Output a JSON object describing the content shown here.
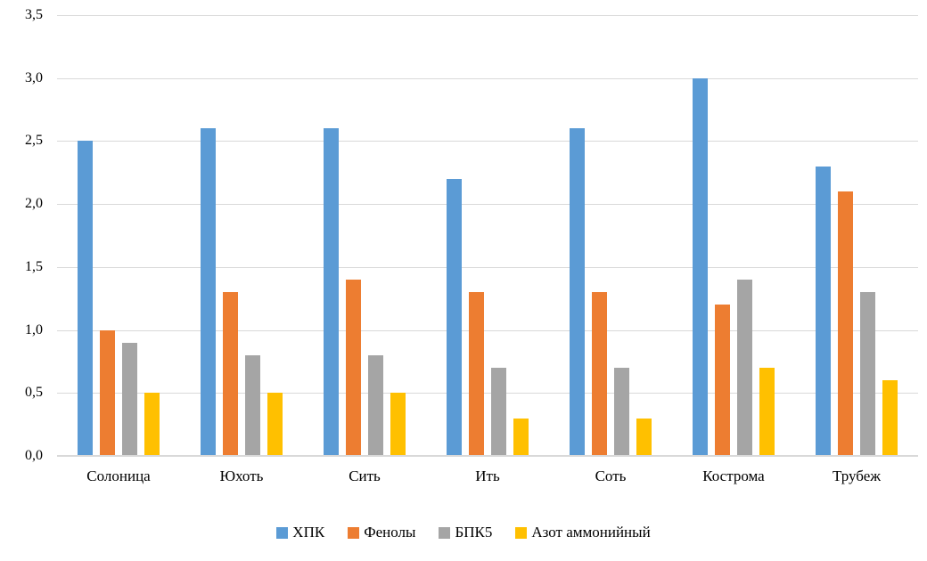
{
  "chart_data": {
    "type": "bar",
    "title": "",
    "categories": [
      "Солоница",
      "Юхоть",
      "Сить",
      "Ить",
      "Соть",
      "Кострома",
      "Трубеж"
    ],
    "series": [
      {
        "id": "khpk",
        "name": "ХПК",
        "color": "#5B9BD5",
        "values": [
          2.5,
          2.6,
          2.6,
          2.2,
          2.6,
          3.0,
          2.3
        ]
      },
      {
        "id": "fenoly",
        "name": "Фенолы",
        "color": "#ED7D31",
        "values": [
          1.0,
          1.3,
          1.4,
          1.3,
          1.3,
          1.2,
          2.1
        ]
      },
      {
        "id": "bpk5",
        "name": "БПК5",
        "color": "#A5A5A5",
        "values": [
          0.9,
          0.8,
          0.8,
          0.7,
          0.7,
          1.4,
          1.3
        ]
      },
      {
        "id": "azot",
        "name": "Азот аммонийный",
        "color": "#FFC000",
        "values": [
          0.5,
          0.5,
          0.5,
          0.3,
          0.3,
          0.7,
          0.6
        ]
      }
    ],
    "ylim": [
      0,
      3.5
    ],
    "y_ticks": [
      {
        "value": 0.0,
        "label": "0,0"
      },
      {
        "value": 0.5,
        "label": "0,5"
      },
      {
        "value": 1.0,
        "label": "1,0"
      },
      {
        "value": 1.5,
        "label": "1,5"
      },
      {
        "value": 2.0,
        "label": "2,0"
      },
      {
        "value": 2.5,
        "label": "2,5"
      },
      {
        "value": 3.0,
        "label": "3,0"
      },
      {
        "value": 3.5,
        "label": "3,5"
      }
    ],
    "grid": true,
    "legend_position": "bottom",
    "xlabel": "",
    "ylabel": ""
  },
  "colors": {
    "background": "#FFFFFF",
    "gridline": "#D9D9D9",
    "axis_line": "#D9D9D9",
    "text": "#000000"
  }
}
